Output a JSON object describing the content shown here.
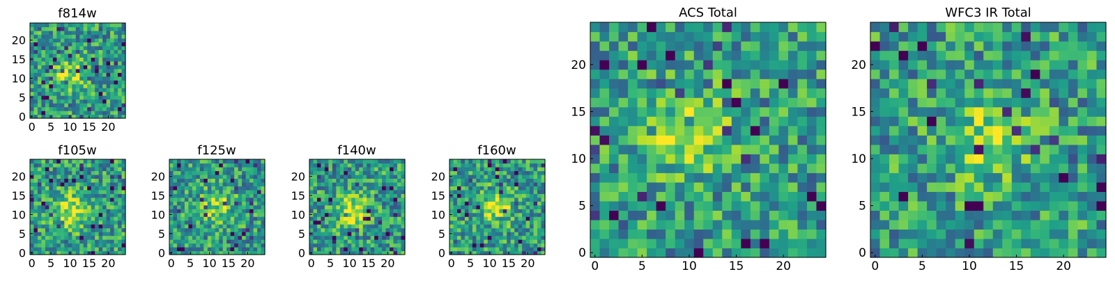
{
  "chart_data": [
    {
      "type": "heatmap",
      "id": "f814w",
      "title": "f814w",
      "colormap": "viridis",
      "grid_size": 25,
      "xticks": [
        "0",
        "5",
        "10",
        "15",
        "20"
      ],
      "yticks": [
        "0",
        "5",
        "10",
        "15",
        "20"
      ],
      "blob": {
        "x": 10,
        "y": 11,
        "amp": 0.35
      },
      "seed": 814
    },
    {
      "type": "heatmap",
      "id": "f105w",
      "title": "f105w",
      "colormap": "viridis",
      "grid_size": 25,
      "xticks": [
        "0",
        "5",
        "10",
        "15",
        "20"
      ],
      "yticks": [
        "0",
        "5",
        "10",
        "15",
        "20"
      ],
      "blob": {
        "x": 10,
        "y": 11,
        "amp": 0.45
      },
      "seed": 105
    },
    {
      "type": "heatmap",
      "id": "f125w",
      "title": "f125w",
      "colormap": "viridis",
      "grid_size": 25,
      "xticks": [
        "0",
        "5",
        "10",
        "15",
        "20"
      ],
      "yticks": [
        "0",
        "5",
        "10",
        "15",
        "20"
      ],
      "blob": {
        "x": 12,
        "y": 12,
        "amp": 0.3
      },
      "seed": 125
    },
    {
      "type": "heatmap",
      "id": "f140w",
      "title": "f140w",
      "colormap": "viridis",
      "grid_size": 25,
      "xticks": [
        "0",
        "5",
        "10",
        "15",
        "20"
      ],
      "yticks": [
        "0",
        "5",
        "10",
        "15",
        "20"
      ],
      "blob": {
        "x": 11,
        "y": 11,
        "amp": 0.4
      },
      "seed": 140
    },
    {
      "type": "heatmap",
      "id": "f160w",
      "title": "f160w",
      "colormap": "viridis",
      "grid_size": 25,
      "xticks": [
        "0",
        "5",
        "10",
        "15",
        "20"
      ],
      "yticks": [
        "0",
        "5",
        "10",
        "15",
        "20"
      ],
      "blob": {
        "x": 12,
        "y": 12,
        "amp": 0.35
      },
      "seed": 160
    },
    {
      "type": "heatmap",
      "id": "acs_total",
      "title": "ACS Total",
      "colormap": "viridis",
      "grid_size": 25,
      "xticks": [
        "0",
        "5",
        "10",
        "15",
        "20"
      ],
      "yticks": [
        "0",
        "5",
        "10",
        "15",
        "20"
      ],
      "blob": {
        "x": 10,
        "y": 13,
        "amp": 0.35
      },
      "seed": 1001
    },
    {
      "type": "heatmap",
      "id": "wfc3_ir_total",
      "title": "WFC3 IR Total",
      "colormap": "viridis",
      "grid_size": 25,
      "xticks": [
        "0",
        "5",
        "10",
        "15",
        "20"
      ],
      "yticks": [
        "0",
        "5",
        "10",
        "15",
        "20"
      ],
      "blob": {
        "x": 12,
        "y": 12,
        "amp": 0.3
      },
      "seed": 2002
    }
  ]
}
